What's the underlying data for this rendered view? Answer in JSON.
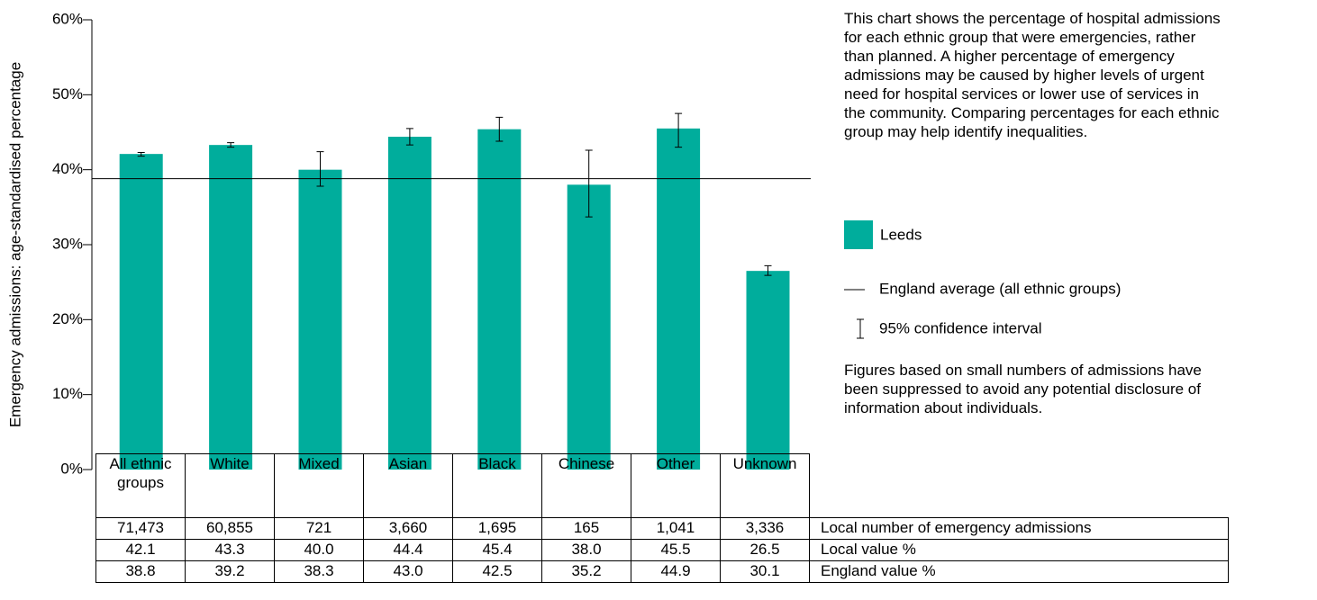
{
  "chart_data": {
    "type": "bar",
    "y_label": "Emergency admissions: age-standardised percentage",
    "series_name": "Leeds",
    "color": "#00ad9c",
    "categories": [
      "All ethnic groups",
      "White",
      "Mixed",
      "Asian",
      "Black",
      "Chinese",
      "Other",
      "Unknown"
    ],
    "values": [
      42.1,
      43.3,
      40.0,
      44.4,
      45.4,
      38.0,
      45.5,
      26.5
    ],
    "value_labels": [
      "42.1",
      "43.3",
      "40.0",
      "44.4",
      "45.4",
      "38.0",
      "45.5",
      "26.5"
    ],
    "ci_lower": [
      41.8,
      43.0,
      37.8,
      43.3,
      43.8,
      33.7,
      43.0,
      25.9
    ],
    "ci_upper": [
      42.3,
      43.6,
      42.4,
      45.5,
      47.0,
      42.6,
      47.5,
      27.2
    ],
    "ylim": [
      0,
      60
    ],
    "yticks": [
      {
        "value": 0,
        "label": "0%"
      },
      {
        "value": 10,
        "label": "10%"
      },
      {
        "value": 20,
        "label": "20%"
      },
      {
        "value": 30,
        "label": "30%"
      },
      {
        "value": 40,
        "label": "40%"
      },
      {
        "value": 50,
        "label": "50%"
      },
      {
        "value": 60,
        "label": "60%"
      }
    ],
    "reference_line_name": "England average (all ethnic groups)",
    "ci_legend": "95% confidence interval",
    "description": "This chart shows the percentage of hospital admissions for each ethnic group that were emergencies, rather than planned. A higher percentage of emergency admissions may be caused by higher levels of urgent need for hospital services or lower use of services in the community. Comparing percentages for each ethnic group may help identify inequalities.",
    "footnote": "Figures based on small numbers of admissions have been suppressed to avoid any potential disclosure of information about individuals.",
    "table": {
      "count_label": "Local number of emergency admissions",
      "counts": [
        "71,473",
        "60,855",
        "721",
        "3,660",
        "1,695",
        "165",
        "1,041",
        "3,336"
      ],
      "local_label": "Local value %",
      "england": {
        "name": "England value %",
        "values": [
          38.8,
          39.2,
          38.3,
          43.0,
          42.5,
          35.2,
          44.9,
          30.1
        ],
        "value_labels": [
          "38.8",
          "39.2",
          "38.3",
          "43.0",
          "42.5",
          "35.2",
          "44.9",
          "30.1"
        ]
      }
    }
  }
}
